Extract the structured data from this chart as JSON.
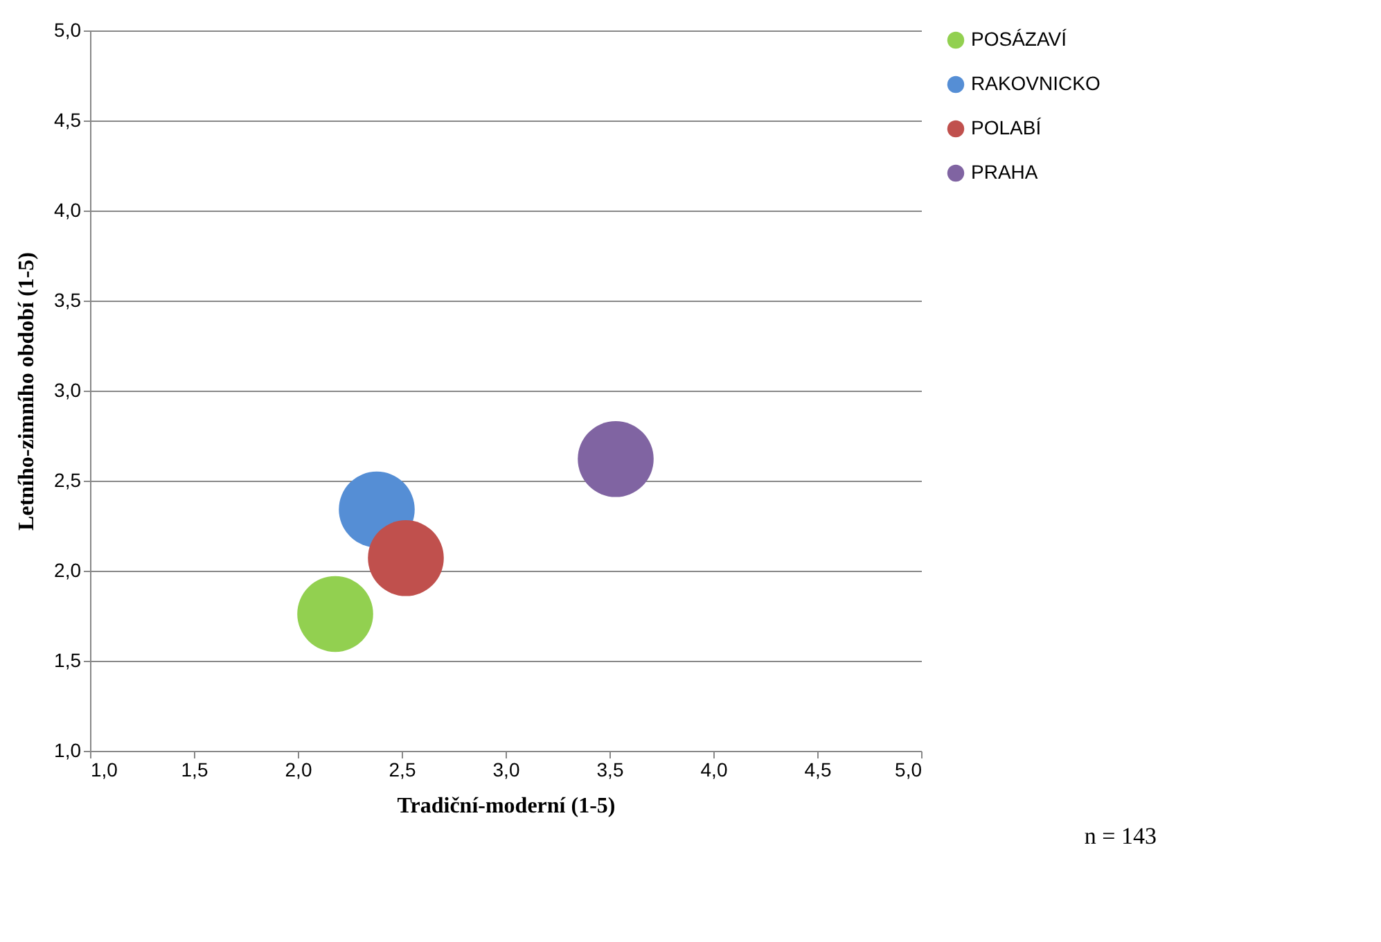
{
  "chart_data": {
    "type": "bubble",
    "xlabel": "Tradiční-moderní (1-5)",
    "ylabel": "Letního-zimního období (1-5)",
    "xlim": [
      1.0,
      5.0
    ],
    "xticks": [
      {
        "value": 1.0,
        "label": "1,0"
      },
      {
        "value": 1.5,
        "label": "1,5"
      },
      {
        "value": 2.0,
        "label": "2,0"
      },
      {
        "value": 2.5,
        "label": "2,5"
      },
      {
        "value": 3.0,
        "label": "3,0"
      },
      {
        "value": 3.5,
        "label": "3,5"
      },
      {
        "value": 4.0,
        "label": "4,0"
      },
      {
        "value": 4.5,
        "label": "4,5"
      },
      {
        "value": 5.0,
        "label": "5,0"
      }
    ],
    "ylim": [
      1.0,
      5.0
    ],
    "yticks": [
      {
        "value": 1.0,
        "label": "1,0"
      },
      {
        "value": 1.5,
        "label": "1,5"
      },
      {
        "value": 2.0,
        "label": "2,0"
      },
      {
        "value": 2.5,
        "label": "2,5"
      },
      {
        "value": 3.0,
        "label": "3,0"
      },
      {
        "value": 3.5,
        "label": "3,5"
      },
      {
        "value": 4.0,
        "label": "4,0"
      },
      {
        "value": 4.5,
        "label": "4,5"
      },
      {
        "value": 5.0,
        "label": "5,0"
      }
    ],
    "grid": "y",
    "legend": "right",
    "annotations": [
      "n = 143"
    ],
    "series": [
      {
        "name": "POSÁZAVÍ",
        "color": "#92d050",
        "x": [
          2.18
        ],
        "values": [
          1.76
        ],
        "sizes": [
          1
        ]
      },
      {
        "name": "RAKOVNICKO",
        "color": "#558ed5",
        "x": [
          2.38
        ],
        "values": [
          2.34
        ],
        "sizes": [
          1
        ]
      },
      {
        "name": "POLABÍ",
        "color": "#c0504d",
        "x": [
          2.52
        ],
        "values": [
          2.07
        ],
        "sizes": [
          1
        ]
      },
      {
        "name": "PRAHA",
        "color": "#8064a2",
        "x": [
          3.53
        ],
        "values": [
          2.62
        ],
        "sizes": [
          1
        ]
      }
    ]
  }
}
